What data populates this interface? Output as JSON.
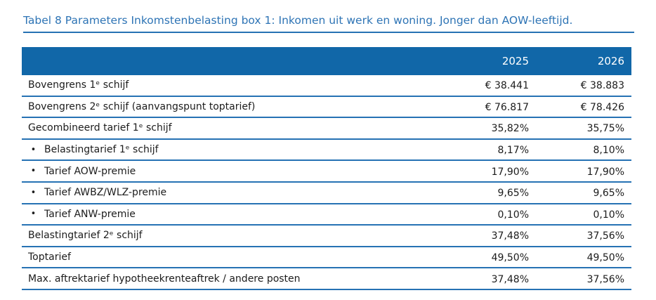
{
  "page": {
    "title": "Tabel 8 Parameters Inkomstenbelasting box 1: Inkomen uit werk en woning. Jonger dan AOW-leeftijd."
  },
  "colors": {
    "header_bar": "#1167a8",
    "rule": "#2672b4",
    "title_text": "#2e74b5",
    "body_text": "#1c1c1c",
    "header_text": "#ffffff",
    "page_bg": "#ffffff"
  },
  "icons": {
    "bullet_glyph": "•"
  },
  "table": {
    "column_headers": [
      "2025",
      "2026"
    ],
    "rows": [
      {
        "label": "Bovengrens 1ᵉ schijf",
        "bullet": false,
        "values": [
          "€ 38.441",
          "€ 38.883"
        ]
      },
      {
        "label": "Bovengrens 2ᵉ schijf (aanvangspunt toptarief)",
        "bullet": false,
        "values": [
          "€ 76.817",
          "€ 78.426"
        ]
      },
      {
        "label": "Gecombineerd tarief 1ᵉ schijf",
        "bullet": false,
        "values": [
          "35,82%",
          "35,75%"
        ]
      },
      {
        "label": "Belastingtarief 1ᵉ schijf",
        "bullet": true,
        "values": [
          "8,17%",
          "8,10%"
        ]
      },
      {
        "label": "Tarief AOW-premie",
        "bullet": true,
        "values": [
          "17,90%",
          "17,90%"
        ]
      },
      {
        "label": "Tarief AWBZ/WLZ-premie",
        "bullet": true,
        "values": [
          "9,65%",
          "9,65%"
        ]
      },
      {
        "label": "Tarief ANW-premie",
        "bullet": true,
        "values": [
          "0,10%",
          "0,10%"
        ]
      },
      {
        "label": "Belastingtarief 2ᵉ schijf",
        "bullet": false,
        "values": [
          "37,48%",
          "37,56%"
        ]
      },
      {
        "label": "Toptarief",
        "bullet": false,
        "values": [
          "49,50%",
          "49,50%"
        ]
      },
      {
        "label": "Max. aftrektarief hypotheekrenteaftrek / andere posten",
        "bullet": false,
        "values": [
          "37,48%",
          "37,56%"
        ]
      }
    ]
  }
}
